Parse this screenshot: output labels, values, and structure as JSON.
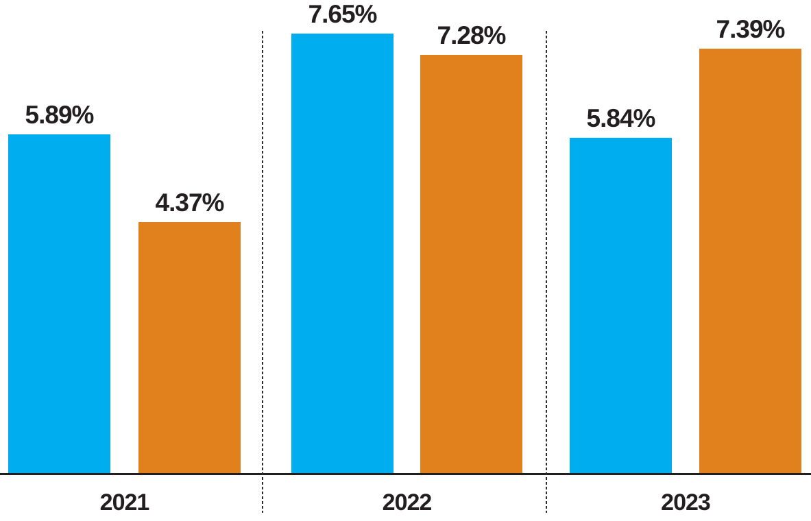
{
  "chart_data": {
    "type": "bar",
    "title": "",
    "xlabel": "",
    "ylabel": "",
    "categories": [
      "2021",
      "2022",
      "2023"
    ],
    "series": [
      {
        "name": "blue-series",
        "color": "#00AEEF",
        "values": [
          5.89,
          7.65,
          5.84
        ],
        "labels": [
          "5.89%",
          "7.65%",
          "5.84%"
        ]
      },
      {
        "name": "orange-series",
        "color": "#E0811E",
        "values": [
          4.37,
          7.28,
          7.39
        ],
        "labels": [
          "4.37%",
          "7.28%",
          "7.39%"
        ]
      }
    ],
    "ylim": [
      0,
      8.3
    ],
    "grid": false,
    "legend": "none",
    "annotations": "bold percentage data labels above each bar; fine dashed vertical separator lines between year groups; solid black baseline axis"
  },
  "colors": {
    "bar_blue": "#00AEEF",
    "bar_orange": "#E0811E",
    "axis": "#231F20",
    "label_text": "#231F20",
    "separator": "#2B2B2B",
    "background": "#FFFFFF"
  }
}
